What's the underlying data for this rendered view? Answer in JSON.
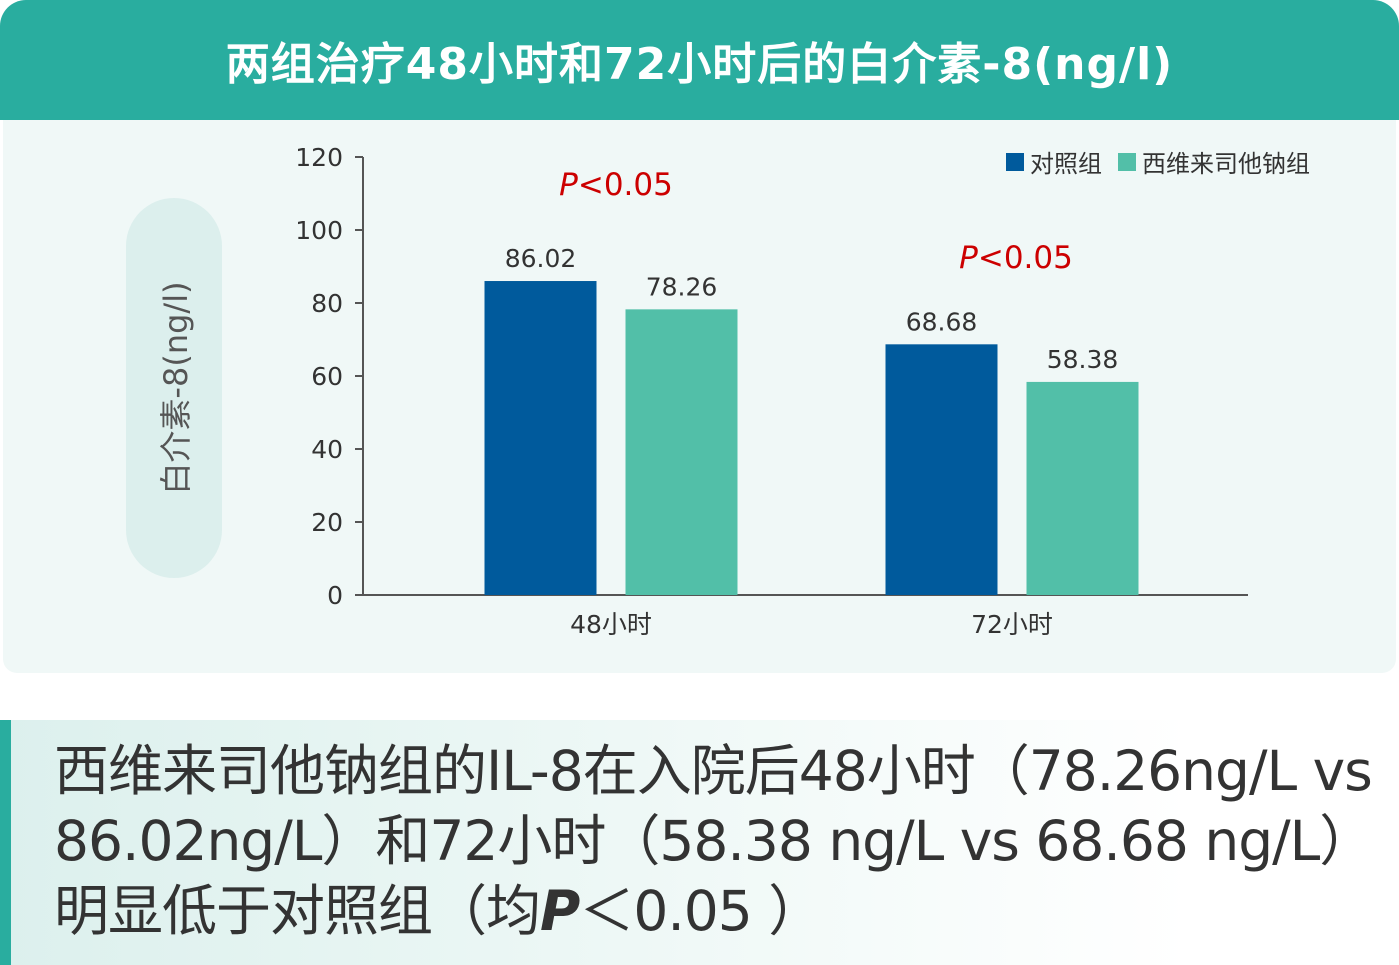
{
  "title": "两组治疗48小时和72小时后的白介素-8(ng/l)",
  "chart_data": {
    "type": "bar",
    "ylabel": "白介素-8(ng/l)",
    "ylim": [
      0,
      120
    ],
    "yticks": [
      0,
      20,
      40,
      60,
      80,
      100,
      120
    ],
    "categories": [
      "48小时",
      "72小时"
    ],
    "series": [
      {
        "name": "对照组",
        "values": [
          86.02,
          68.68
        ],
        "color": "#005a9c"
      },
      {
        "name": "西维来司他钠组",
        "values": [
          78.26,
          58.38
        ],
        "color": "#52bfa8"
      }
    ],
    "annotations": [
      {
        "category": "48小时",
        "p_italic": "P",
        "p_rest": "<0.05"
      },
      {
        "category": "72小时",
        "p_italic": "P",
        "p_rest": "<0.05"
      }
    ],
    "annotation_color": "#cc0000",
    "legend_position": "top-right"
  },
  "summary": {
    "part1": "西维来司他钠组的IL-8在入院后48小时（78.26ng/L vs 86.02ng/L）和72小时（58.38 ng/L vs 68.68 ng/L）明显低于对照组（均",
    "p": "P",
    "part2": "＜0.05 ）"
  }
}
